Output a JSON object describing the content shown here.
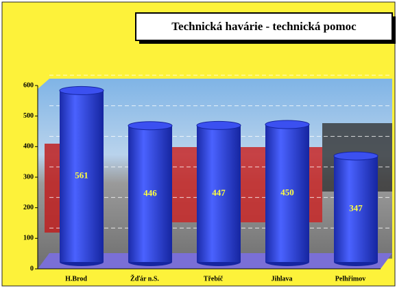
{
  "chart_data": {
    "type": "bar",
    "title": "Technická havárie - technická pomoc",
    "categories": [
      "H.Brod",
      "Žďár n.S.",
      "Třebíč",
      "Jihlava",
      "Pelhřimov"
    ],
    "values": [
      561,
      446,
      447,
      450,
      347
    ],
    "color": "#2a3fe0",
    "ylim": [
      0,
      600
    ],
    "yticks": [
      0,
      100,
      200,
      300,
      400,
      500,
      600
    ],
    "grid": true
  }
}
